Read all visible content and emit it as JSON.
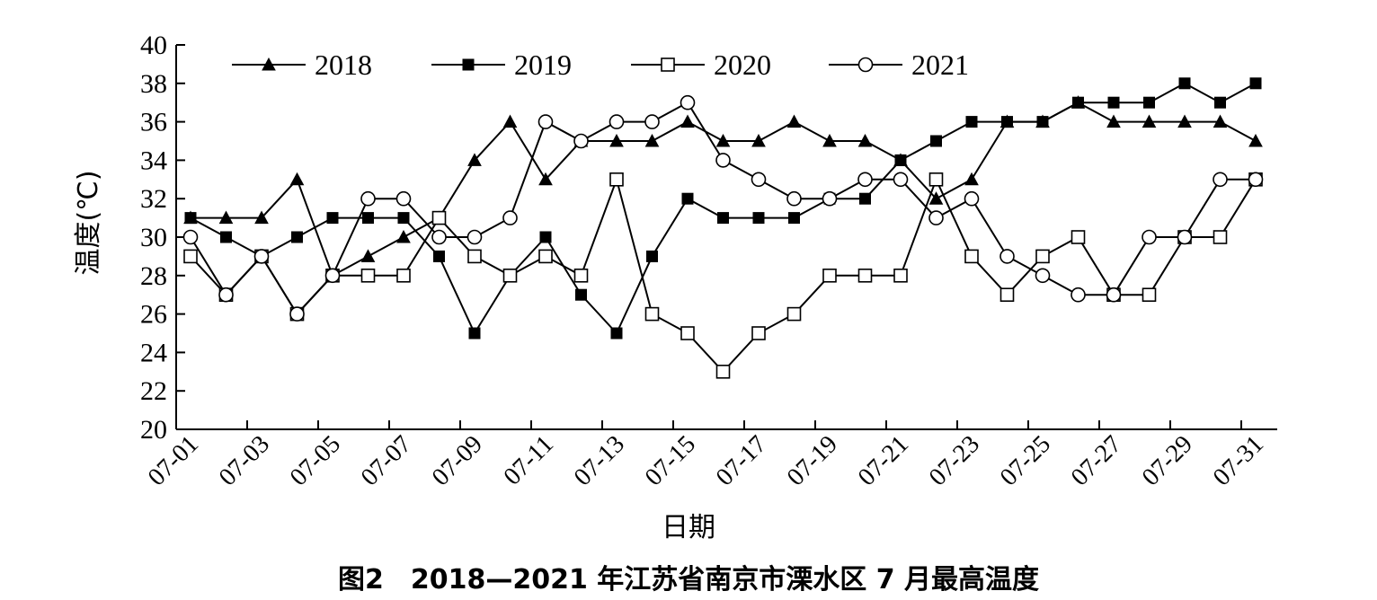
{
  "caption": "图2　2018—2021 年江苏省南京市溧水区 7 月最高温度",
  "chart_data": {
    "type": "line",
    "xlabel": "日期",
    "ylabel": "温度(℃)",
    "ylim": [
      20,
      40
    ],
    "yticks": [
      "20",
      "22",
      "24",
      "26",
      "28",
      "30",
      "32",
      "34",
      "36",
      "38",
      "40"
    ],
    "x": [
      "07-01",
      "07-02",
      "07-03",
      "07-04",
      "07-05",
      "07-06",
      "07-07",
      "07-08",
      "07-09",
      "07-10",
      "07-11",
      "07-12",
      "07-13",
      "07-14",
      "07-15",
      "07-16",
      "07-17",
      "07-18",
      "07-19",
      "07-20",
      "07-21",
      "07-22",
      "07-23",
      "07-24",
      "07-25",
      "07-26",
      "07-27",
      "07-28",
      "07-29",
      "07-30",
      "07-31"
    ],
    "xtick_labels": [
      "07-01",
      "07-03",
      "07-05",
      "07-07",
      "07-09",
      "07-11",
      "07-13",
      "07-15",
      "07-17",
      "07-19",
      "07-21",
      "07-23",
      "07-25",
      "07-27",
      "07-29",
      "07-31"
    ],
    "legend_position": "top",
    "series": [
      {
        "name": "2018",
        "marker": "filled-triangle",
        "values": [
          31,
          31,
          31,
          33,
          28,
          29,
          30,
          31,
          34,
          36,
          33,
          35,
          35,
          35,
          36,
          35,
          35,
          36,
          35,
          35,
          34,
          32,
          33,
          36,
          36,
          37,
          36,
          36,
          36,
          36,
          35
        ]
      },
      {
        "name": "2019",
        "marker": "filled-square",
        "values": [
          31,
          30,
          29,
          30,
          31,
          31,
          31,
          29,
          25,
          28,
          30,
          27,
          25,
          29,
          32,
          31,
          31,
          31,
          32,
          32,
          34,
          35,
          36,
          36,
          36,
          37,
          37,
          37,
          38,
          37,
          38
        ]
      },
      {
        "name": "2020",
        "marker": "open-square",
        "values": [
          29,
          27,
          29,
          26,
          28,
          28,
          28,
          31,
          29,
          28,
          29,
          28,
          33,
          26,
          25,
          23,
          25,
          26,
          28,
          28,
          28,
          33,
          29,
          27,
          29,
          30,
          27,
          27,
          30,
          30,
          33
        ]
      },
      {
        "name": "2021",
        "marker": "open-circle",
        "values": [
          30,
          27,
          29,
          26,
          28,
          32,
          32,
          30,
          30,
          31,
          36,
          35,
          36,
          36,
          37,
          34,
          33,
          32,
          32,
          33,
          33,
          31,
          32,
          29,
          28,
          27,
          27,
          30,
          30,
          33,
          33
        ]
      }
    ]
  }
}
